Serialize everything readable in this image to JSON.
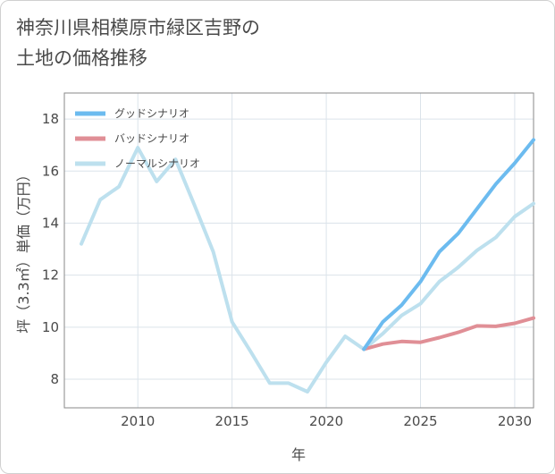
{
  "title_lines": [
    "神奈川県相模原市緑区吉野の",
    "土地の価格推移"
  ],
  "chart_data": {
    "type": "line",
    "xlabel": "年",
    "ylabel": "坪（3.3㎡）単価（万円）",
    "xlim": [
      2006.1,
      2031
    ],
    "ylim": [
      6.9,
      19.0
    ],
    "xticks": [
      2010,
      2015,
      2020,
      2025,
      2030
    ],
    "yticks": [
      8,
      10,
      12,
      14,
      16,
      18
    ],
    "grid": true,
    "legend_position": "top-left",
    "series": [
      {
        "name": "グッドシナリオ",
        "color": "#6cbbef",
        "x": [
          2022,
          2023,
          2024,
          2025,
          2026,
          2027,
          2028,
          2029,
          2030,
          2031
        ],
        "y": [
          9.15,
          10.2,
          10.85,
          11.75,
          12.9,
          13.6,
          14.55,
          15.5,
          16.3,
          17.2
        ]
      },
      {
        "name": "バッドシナリオ",
        "color": "#e08f96",
        "x": [
          2022,
          2023,
          2024,
          2025,
          2026,
          2027,
          2028,
          2029,
          2030,
          2031
        ],
        "y": [
          9.15,
          9.35,
          9.45,
          9.42,
          9.6,
          9.8,
          10.05,
          10.03,
          10.15,
          10.35
        ]
      },
      {
        "name": "ノーマルシナリオ",
        "color": "#bde0ee",
        "x": [
          2007,
          2008,
          2009,
          2010,
          2011,
          2012,
          2013,
          2014,
          2015,
          2016,
          2017,
          2018,
          2019,
          2020,
          2021,
          2022,
          2023,
          2024,
          2025,
          2026,
          2027,
          2028,
          2029,
          2030,
          2031
        ],
        "y": [
          13.2,
          14.9,
          15.4,
          16.9,
          15.6,
          16.45,
          14.7,
          12.9,
          10.2,
          9.05,
          7.85,
          7.85,
          7.52,
          8.65,
          9.65,
          9.15,
          9.75,
          10.45,
          10.9,
          11.75,
          12.3,
          12.95,
          13.45,
          14.25,
          14.75
        ]
      }
    ]
  }
}
